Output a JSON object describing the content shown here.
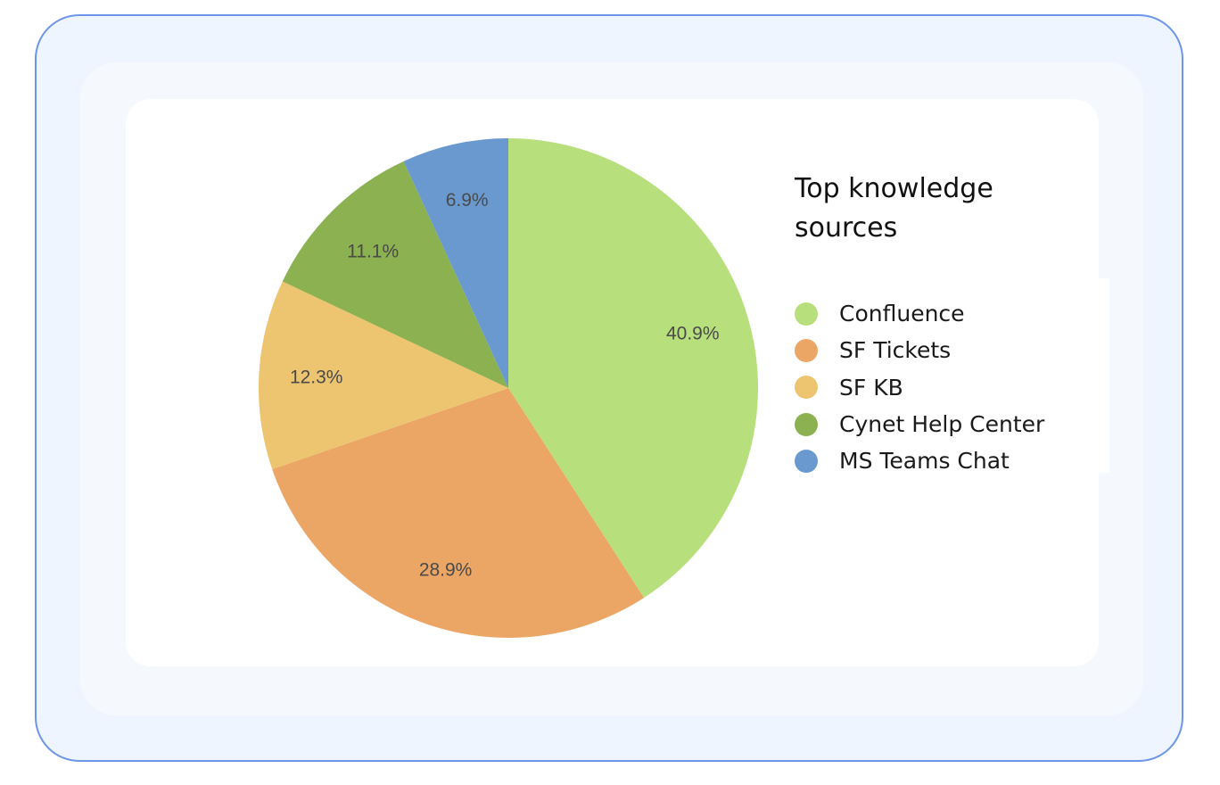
{
  "chart_data": {
    "type": "pie",
    "title": "Top knowledge sources",
    "slices": [
      {
        "name": "Confluence",
        "value": 40.9,
        "label": "40.9%",
        "color": "#b7df7c"
      },
      {
        "name": "SF Tickets",
        "value": 28.9,
        "label": "28.9%",
        "color": "#eba665"
      },
      {
        "name": "SF KB",
        "value": 12.3,
        "label": "12.3%",
        "color": "#edc470"
      },
      {
        "name": "Cynet Help Center",
        "value": 11.1,
        "label": "11.1%",
        "color": "#8bb150"
      },
      {
        "name": "MS Teams Chat",
        "value": 6.9,
        "label": "6.9%",
        "color": "#6a99d0"
      }
    ],
    "legend_position": "right",
    "start_angle": "top",
    "direction": "clockwise"
  }
}
